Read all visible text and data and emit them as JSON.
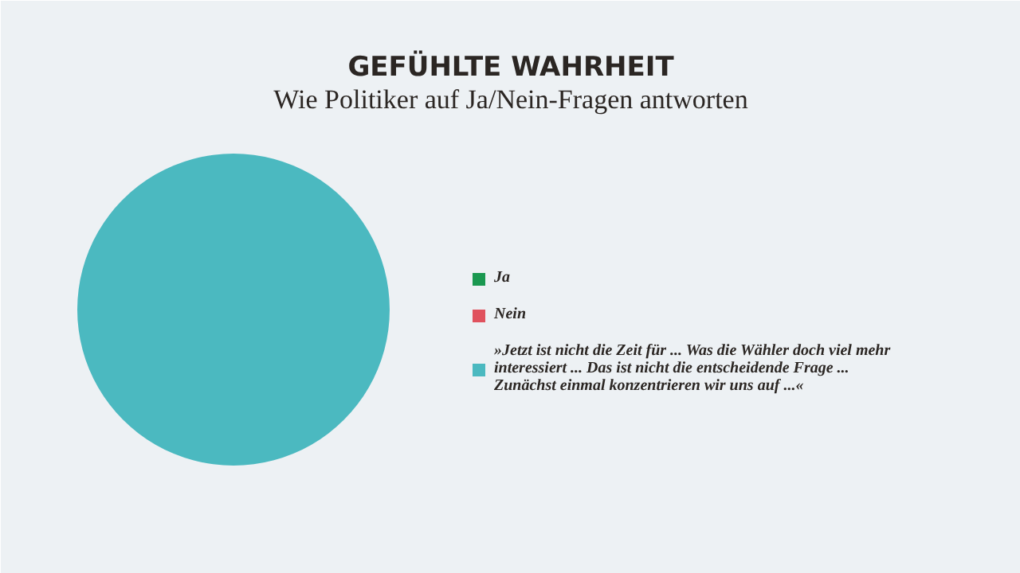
{
  "chart_data": {
    "type": "pie",
    "title": "GEFÜHLTE WAHRHEIT",
    "subtitle": "Wie Politiker auf Ja/Nein-Fragen antworten",
    "categories": [
      "Ja",
      "Nein",
      "»Jetzt ist nicht die Zeit für ... Was die Wähler doch viel mehr\ninteressiert ... Das ist nicht die entscheidende Frage ...\nZunächst einmal konzentrieren wir uns auf ...«"
    ],
    "values": [
      0,
      0,
      100
    ],
    "colors": [
      "#1a9850",
      "#e0525e",
      "#4bb9c0"
    ],
    "legend": "right"
  }
}
